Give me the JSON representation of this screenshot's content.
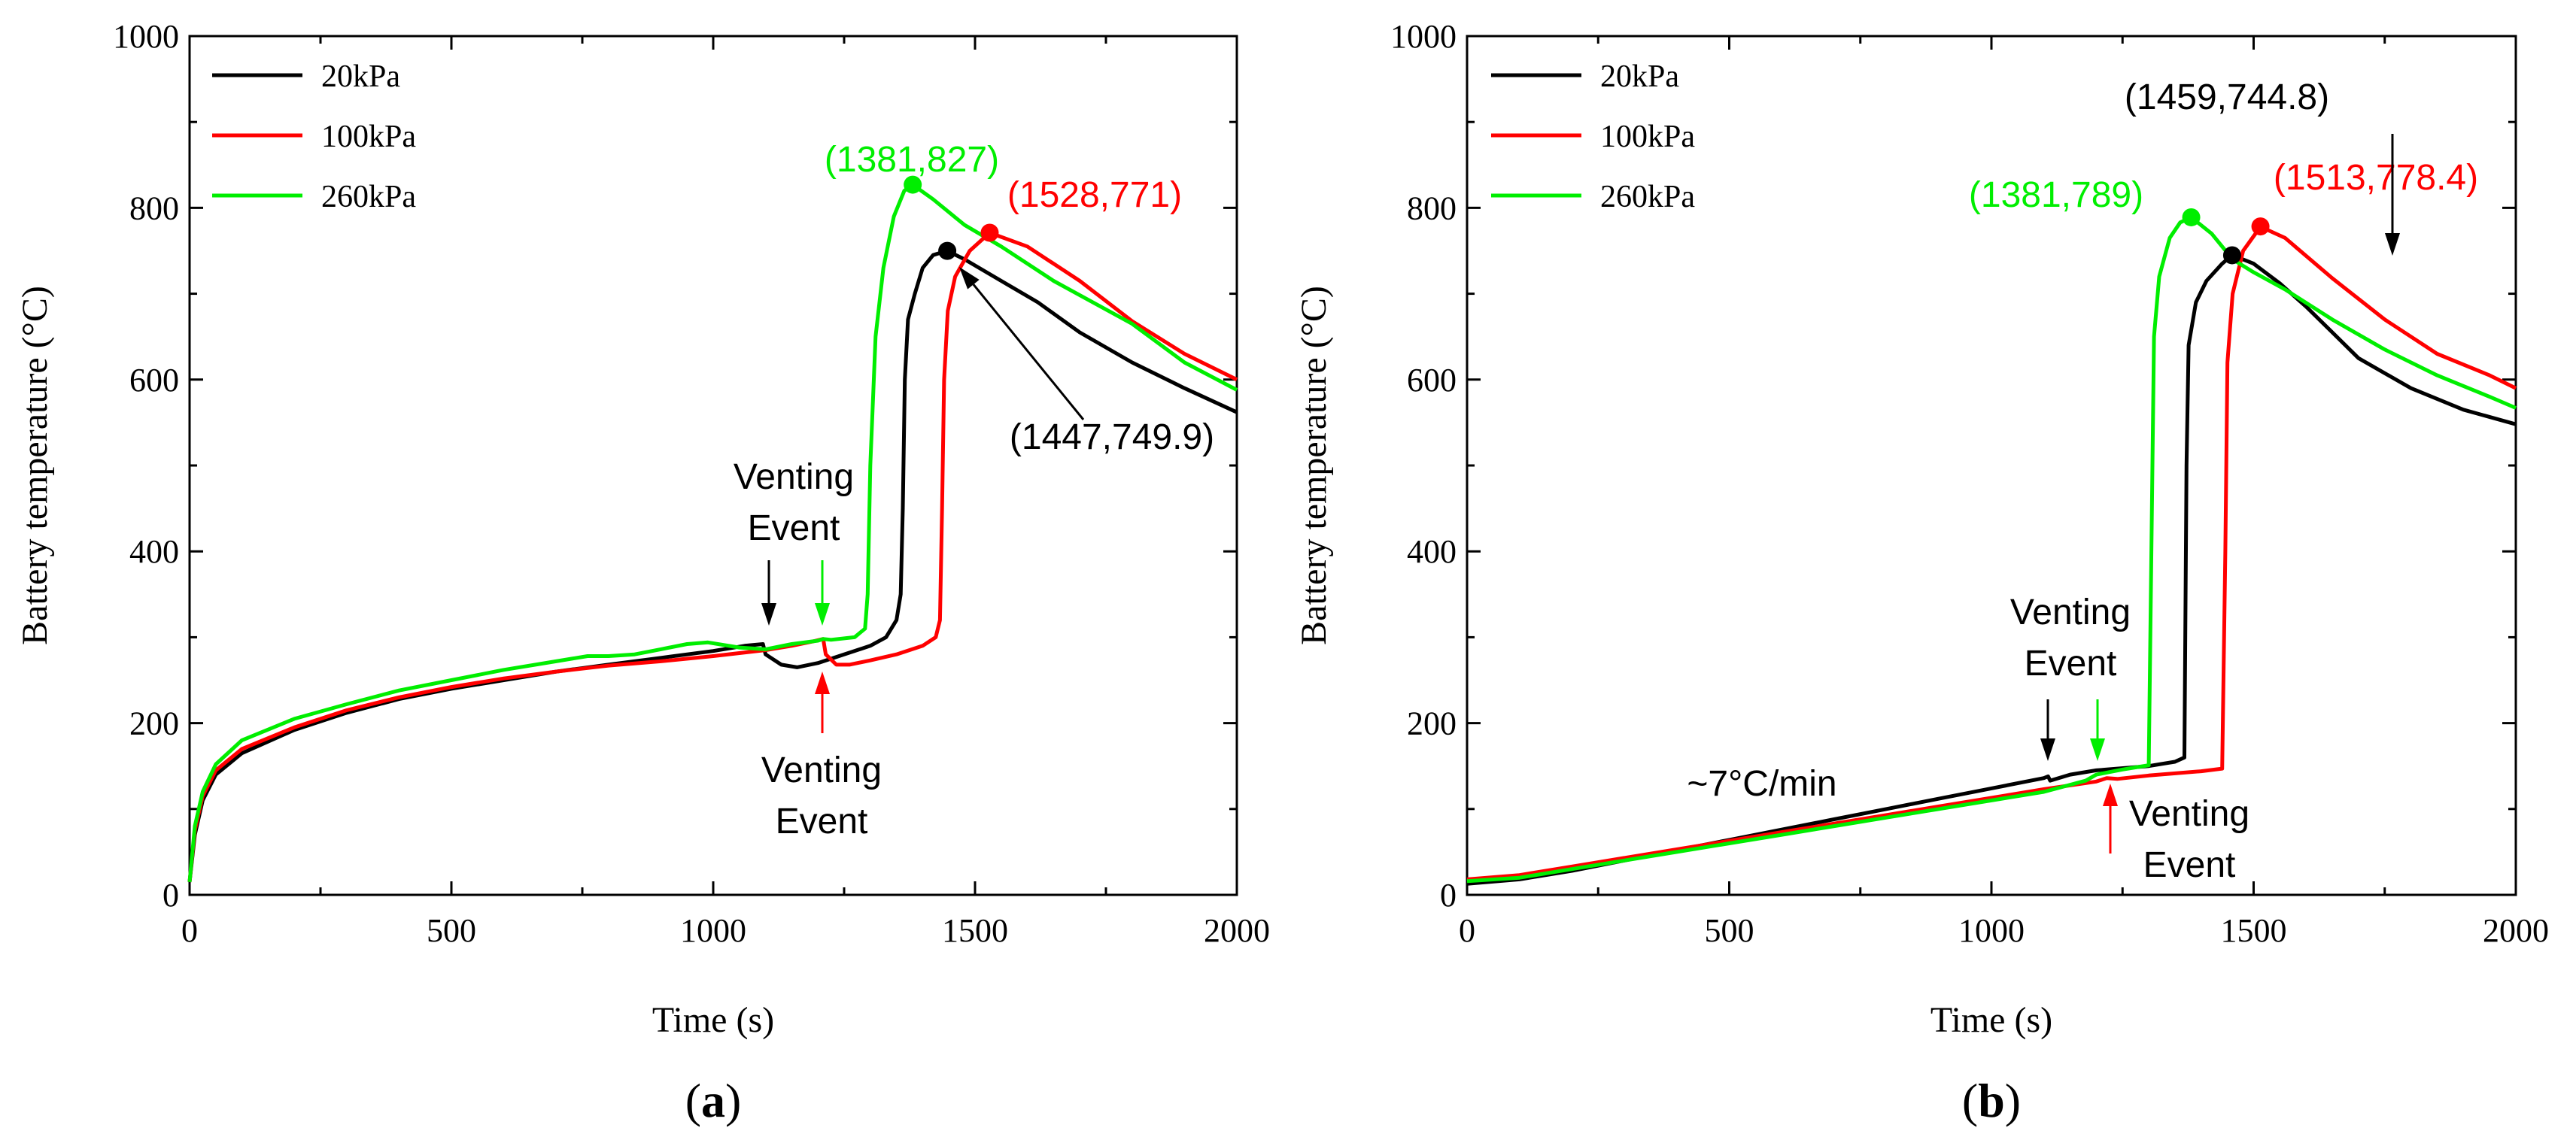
{
  "chart_data": [
    {
      "type": "line",
      "panel_label": "(a)",
      "xlabel": "Time (s)",
      "ylabel": "Battery temperature (°C)",
      "xlim": [
        0,
        2000
      ],
      "ylim": [
        0,
        1000
      ],
      "xticks": [
        0,
        500,
        1000,
        1500,
        2000
      ],
      "yticks": [
        0,
        200,
        400,
        600,
        800,
        1000
      ],
      "legend_position": "top-left",
      "series": [
        {
          "name": "20kPa",
          "color": "#000000",
          "points": [
            [
              0,
              15
            ],
            [
              10,
              70
            ],
            [
              25,
              110
            ],
            [
              50,
              140
            ],
            [
              100,
              165
            ],
            [
              200,
              192
            ],
            [
              300,
              212
            ],
            [
              400,
              228
            ],
            [
              500,
              240
            ],
            [
              600,
              250
            ],
            [
              700,
              260
            ],
            [
              800,
              268
            ],
            [
              900,
              276
            ],
            [
              1000,
              284
            ],
            [
              1060,
              290
            ],
            [
              1095,
              292
            ],
            [
              1100,
              280
            ],
            [
              1130,
              268
            ],
            [
              1160,
              265
            ],
            [
              1200,
              270
            ],
            [
              1250,
              280
            ],
            [
              1300,
              290
            ],
            [
              1330,
              300
            ],
            [
              1350,
              320
            ],
            [
              1358,
              350
            ],
            [
              1362,
              450
            ],
            [
              1366,
              600
            ],
            [
              1372,
              670
            ],
            [
              1385,
              700
            ],
            [
              1400,
              730
            ],
            [
              1420,
              745
            ],
            [
              1447,
              750
            ],
            [
              1480,
              740
            ],
            [
              1550,
              715
            ],
            [
              1620,
              690
            ],
            [
              1700,
              655
            ],
            [
              1800,
              620
            ],
            [
              1900,
              590
            ],
            [
              2000,
              562
            ]
          ]
        },
        {
          "name": "100kPa",
          "color": "#ff0000",
          "points": [
            [
              0,
              15
            ],
            [
              10,
              75
            ],
            [
              25,
              115
            ],
            [
              50,
              145
            ],
            [
              100,
              170
            ],
            [
              200,
              195
            ],
            [
              300,
              215
            ],
            [
              400,
              230
            ],
            [
              500,
              242
            ],
            [
              600,
              252
            ],
            [
              700,
              260
            ],
            [
              800,
              267
            ],
            [
              900,
              272
            ],
            [
              1000,
              278
            ],
            [
              1100,
              285
            ],
            [
              1150,
              290
            ],
            [
              1190,
              295
            ],
            [
              1210,
              298
            ],
            [
              1215,
              280
            ],
            [
              1235,
              268
            ],
            [
              1260,
              268
            ],
            [
              1300,
              273
            ],
            [
              1350,
              280
            ],
            [
              1400,
              290
            ],
            [
              1425,
              300
            ],
            [
              1433,
              320
            ],
            [
              1437,
              450
            ],
            [
              1441,
              600
            ],
            [
              1448,
              680
            ],
            [
              1462,
              720
            ],
            [
              1490,
              750
            ],
            [
              1528,
              771
            ],
            [
              1600,
              755
            ],
            [
              1700,
              715
            ],
            [
              1800,
              668
            ],
            [
              1900,
              630
            ],
            [
              2000,
              600
            ]
          ]
        },
        {
          "name": "260kPa",
          "color": "#00ee00",
          "points": [
            [
              0,
              15
            ],
            [
              10,
              80
            ],
            [
              25,
              120
            ],
            [
              50,
              152
            ],
            [
              100,
              180
            ],
            [
              200,
              205
            ],
            [
              300,
              222
            ],
            [
              400,
              238
            ],
            [
              500,
              250
            ],
            [
              600,
              262
            ],
            [
              700,
              272
            ],
            [
              760,
              278
            ],
            [
              800,
              278
            ],
            [
              850,
              280
            ],
            [
              900,
              286
            ],
            [
              950,
              292
            ],
            [
              990,
              294
            ],
            [
              1050,
              288
            ],
            [
              1100,
              286
            ],
            [
              1150,
              292
            ],
            [
              1200,
              296
            ],
            [
              1210,
              298
            ],
            [
              1225,
              297
            ],
            [
              1270,
              300
            ],
            [
              1290,
              310
            ],
            [
              1295,
              350
            ],
            [
              1300,
              500
            ],
            [
              1310,
              650
            ],
            [
              1325,
              730
            ],
            [
              1345,
              790
            ],
            [
              1365,
              820
            ],
            [
              1381,
              827
            ],
            [
              1420,
              810
            ],
            [
              1480,
              780
            ],
            [
              1550,
              755
            ],
            [
              1650,
              715
            ],
            [
              1800,
              665
            ],
            [
              1900,
              620
            ],
            [
              2000,
              588
            ]
          ]
        }
      ],
      "markers": [
        {
          "x": 1447,
          "y": 749.9,
          "color": "#000000"
        },
        {
          "x": 1528,
          "y": 771,
          "color": "#ff0000"
        },
        {
          "x": 1381,
          "y": 827,
          "color": "#00ee00"
        }
      ],
      "annotations": [
        {
          "text": "(1381,827)",
          "color": "#00ee00"
        },
        {
          "text": "(1528,771)",
          "color": "#ff0000"
        },
        {
          "text": "(1447,749.9)",
          "color": "#000000"
        },
        {
          "text": "Venting",
          "color": "#000000"
        },
        {
          "text": "Event",
          "color": "#000000"
        },
        {
          "text": "Venting",
          "color": "#000000"
        },
        {
          "text": "Event",
          "color": "#000000"
        }
      ]
    },
    {
      "type": "line",
      "panel_label": "(b)",
      "xlabel": "Time (s)",
      "ylabel": "Battery temperature (°C)",
      "xlim": [
        0,
        2000
      ],
      "ylim": [
        0,
        1000
      ],
      "xticks": [
        0,
        500,
        1000,
        1500,
        2000
      ],
      "yticks": [
        0,
        200,
        400,
        600,
        800,
        1000
      ],
      "legend_position": "top-left",
      "series": [
        {
          "name": "20kPa",
          "color": "#000000",
          "points": [
            [
              0,
              13
            ],
            [
              100,
              18
            ],
            [
              200,
              28
            ],
            [
              300,
              40
            ],
            [
              400,
              52
            ],
            [
              500,
              64
            ],
            [
              600,
              76
            ],
            [
              700,
              88
            ],
            [
              800,
              100
            ],
            [
              900,
              112
            ],
            [
              1000,
              124
            ],
            [
              1100,
              136
            ],
            [
              1108,
              138
            ],
            [
              1112,
              133
            ],
            [
              1150,
              140
            ],
            [
              1200,
              145
            ],
            [
              1300,
              150
            ],
            [
              1350,
              155
            ],
            [
              1368,
              160
            ],
            [
              1372,
              500
            ],
            [
              1376,
              640
            ],
            [
              1390,
              690
            ],
            [
              1410,
              715
            ],
            [
              1440,
              735
            ],
            [
              1459,
              745
            ],
            [
              1500,
              735
            ],
            [
              1550,
              712
            ],
            [
              1600,
              685
            ],
            [
              1650,
              655
            ],
            [
              1700,
              625
            ],
            [
              1800,
              590
            ],
            [
              1900,
              565
            ],
            [
              2000,
              548
            ]
          ]
        },
        {
          "name": "100kPa",
          "color": "#ff0000",
          "points": [
            [
              0,
              18
            ],
            [
              100,
              23
            ],
            [
              200,
              33
            ],
            [
              300,
              43
            ],
            [
              400,
              53
            ],
            [
              500,
              63
            ],
            [
              600,
              73
            ],
            [
              700,
              83
            ],
            [
              800,
              93
            ],
            [
              900,
              103
            ],
            [
              1000,
              113
            ],
            [
              1100,
              123
            ],
            [
              1200,
              132
            ],
            [
              1220,
              136
            ],
            [
              1240,
              135
            ],
            [
              1300,
              139
            ],
            [
              1400,
              144
            ],
            [
              1440,
              147
            ],
            [
              1446,
              400
            ],
            [
              1450,
              620
            ],
            [
              1460,
              700
            ],
            [
              1480,
              750
            ],
            [
              1513,
              778
            ],
            [
              1560,
              765
            ],
            [
              1650,
              718
            ],
            [
              1750,
              670
            ],
            [
              1850,
              630
            ],
            [
              1950,
              605
            ],
            [
              2000,
              590
            ]
          ]
        },
        {
          "name": "260kPa",
          "color": "#00ee00",
          "points": [
            [
              0,
              16
            ],
            [
              100,
              20
            ],
            [
              200,
              30
            ],
            [
              300,
              40
            ],
            [
              400,
              50
            ],
            [
              500,
              60
            ],
            [
              600,
              70
            ],
            [
              700,
              80
            ],
            [
              800,
              90
            ],
            [
              900,
              100
            ],
            [
              1000,
              110
            ],
            [
              1100,
              120
            ],
            [
              1180,
              133
            ],
            [
              1200,
              140
            ],
            [
              1250,
              146
            ],
            [
              1300,
              151
            ],
            [
              1305,
              400
            ],
            [
              1310,
              650
            ],
            [
              1320,
              720
            ],
            [
              1340,
              765
            ],
            [
              1360,
              783
            ],
            [
              1381,
              789
            ],
            [
              1420,
              770
            ],
            [
              1460,
              740
            ],
            [
              1500,
              725
            ],
            [
              1560,
              705
            ],
            [
              1650,
              670
            ],
            [
              1750,
              635
            ],
            [
              1850,
              605
            ],
            [
              1950,
              580
            ],
            [
              2000,
              567
            ]
          ]
        }
      ],
      "markers": [
        {
          "x": 1459,
          "y": 744.8,
          "color": "#000000"
        },
        {
          "x": 1513,
          "y": 778.4,
          "color": "#ff0000"
        },
        {
          "x": 1381,
          "y": 789,
          "color": "#00ee00"
        }
      ],
      "annotations": [
        {
          "text": "(1459,744.8)",
          "color": "#000000"
        },
        {
          "text": "(1381,789)",
          "color": "#00ee00"
        },
        {
          "text": "(1513,778.4)",
          "color": "#ff0000"
        },
        {
          "text": "Venting",
          "color": "#000000"
        },
        {
          "text": "Event",
          "color": "#000000"
        },
        {
          "text": "~7°C/min",
          "color": "#000000"
        },
        {
          "text": "Venting",
          "color": "#000000"
        },
        {
          "text": "Event",
          "color": "#000000"
        }
      ]
    }
  ]
}
